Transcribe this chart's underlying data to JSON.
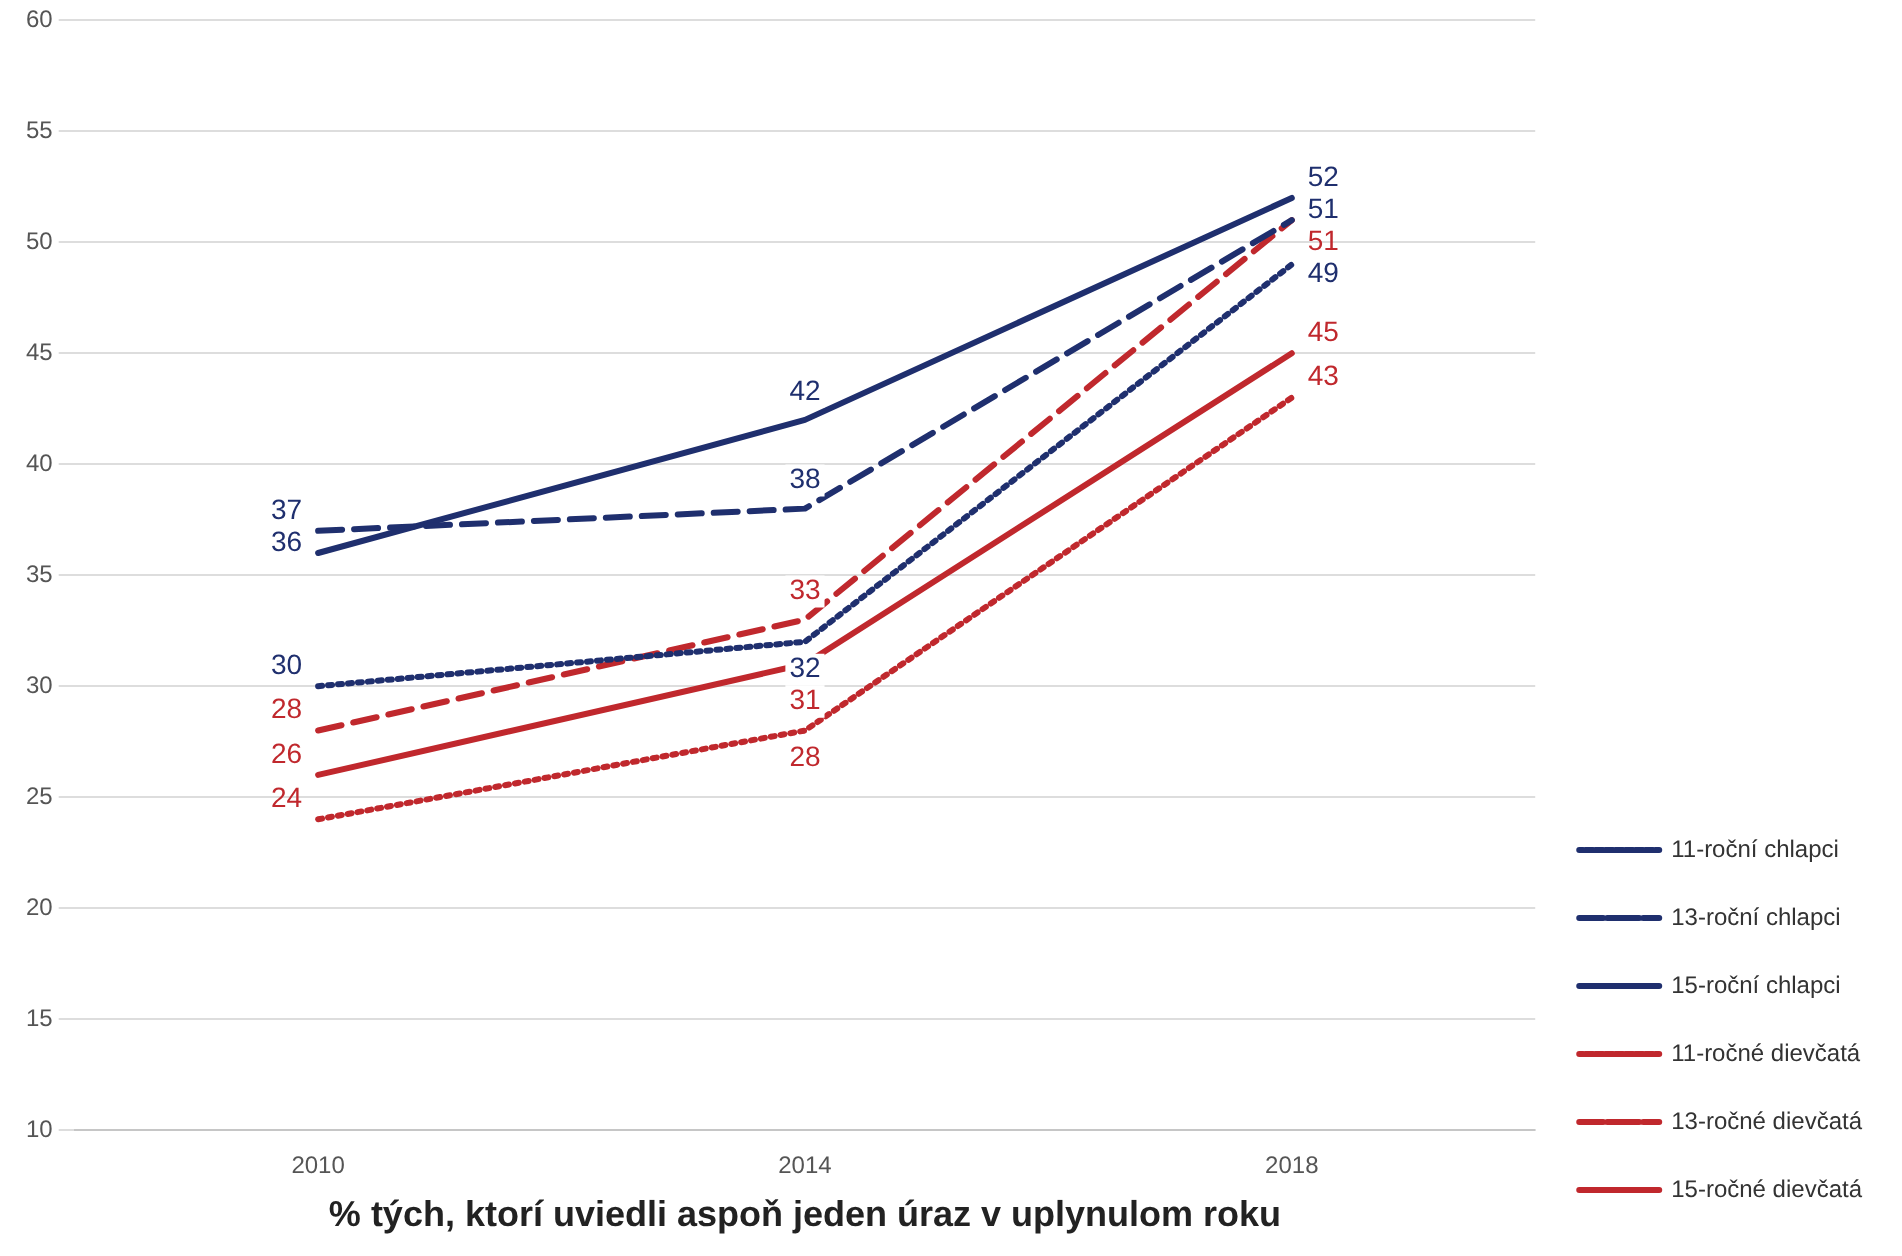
{
  "chart_data": {
    "type": "line",
    "xlabel": "% tých, ktorí uviedli aspoň jeden úraz v uplynulom roku",
    "categories": [
      "2010",
      "2014",
      "2018"
    ],
    "series": [
      {
        "name": "11-roční chlapci",
        "color": "#1f2f6e",
        "line_style": "dotted",
        "values": [
          30,
          32,
          49
        ]
      },
      {
        "name": "13-roční chlapci",
        "color": "#1f2f6e",
        "line_style": "dashed",
        "values": [
          37,
          38,
          51
        ]
      },
      {
        "name": "15-roční chlapci",
        "color": "#1f2f6e",
        "line_style": "solid",
        "values": [
          36,
          42,
          52
        ]
      },
      {
        "name": "11-ročné dievčatá",
        "color": "#c0282d",
        "line_style": "dotted",
        "values": [
          24,
          28,
          43
        ]
      },
      {
        "name": "13-ročné dievčatá",
        "color": "#c0282d",
        "line_style": "dashed",
        "values": [
          28,
          33,
          51
        ]
      },
      {
        "name": "15-ročné dievčatá",
        "color": "#c0282d",
        "line_style": "solid",
        "values": [
          26,
          31,
          45
        ]
      }
    ],
    "ylim": [
      10,
      60
    ],
    "yticks": [
      10,
      15,
      20,
      25,
      30,
      35,
      40,
      45,
      50,
      55,
      60
    ],
    "grid": "y",
    "legend": "right",
    "marker": "none",
    "data_labels": true
  }
}
